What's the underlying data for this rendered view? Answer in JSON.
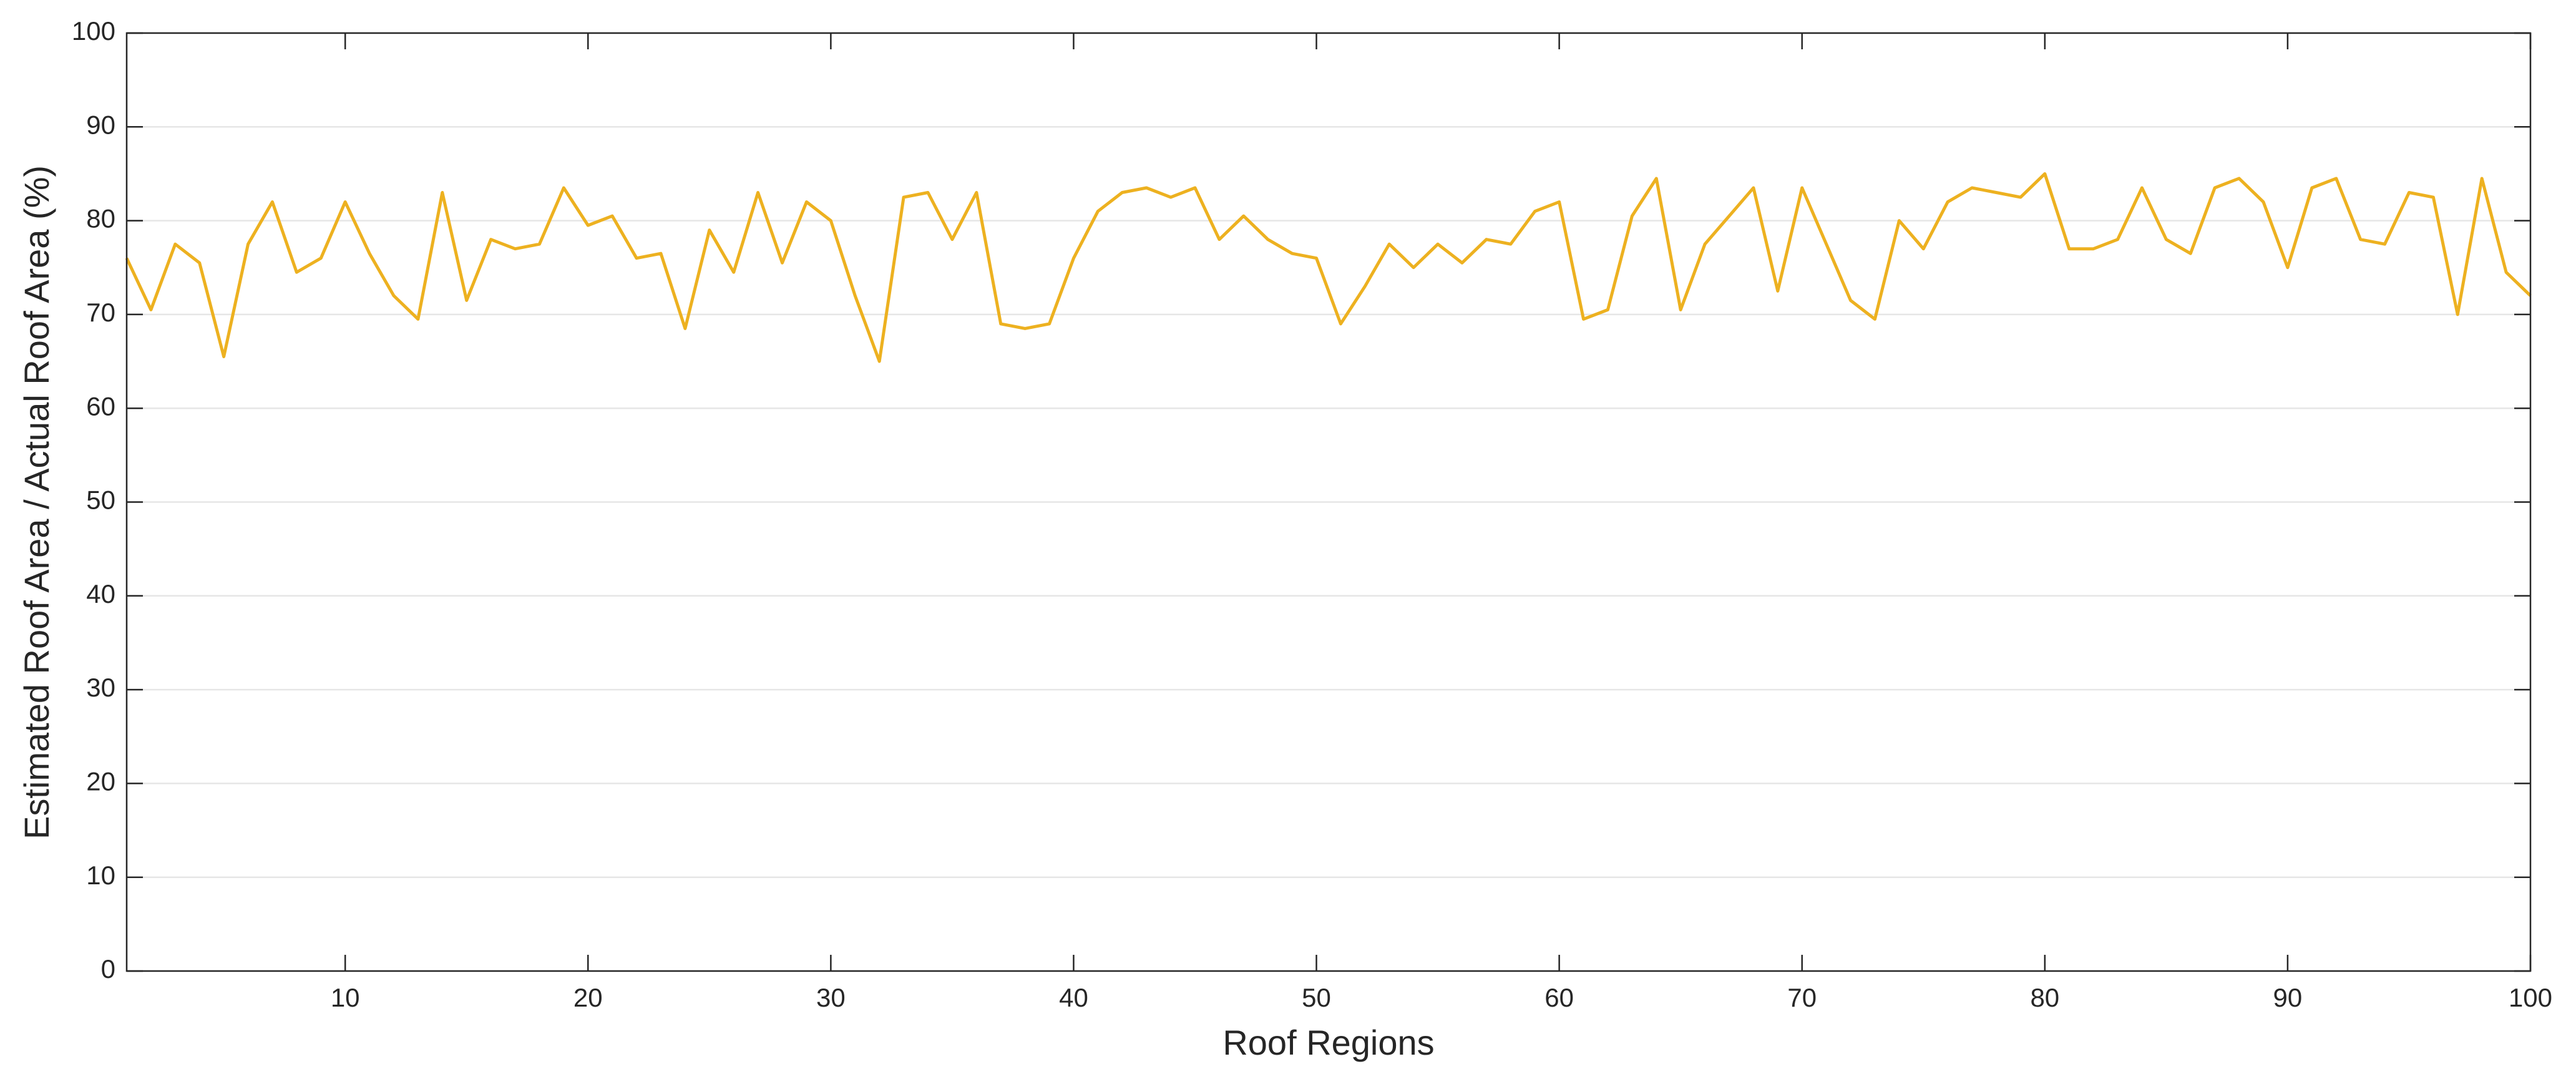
{
  "chart_data": {
    "type": "line",
    "xlabel": "Roof Regions",
    "ylabel": "Estimated Roof Area / Actual Roof Area (%)",
    "x": [
      1,
      2,
      3,
      4,
      5,
      6,
      7,
      8,
      9,
      10,
      11,
      12,
      13,
      14,
      15,
      16,
      17,
      18,
      19,
      20,
      21,
      22,
      23,
      24,
      25,
      26,
      27,
      28,
      29,
      30,
      31,
      32,
      33,
      34,
      35,
      36,
      37,
      38,
      39,
      40,
      41,
      42,
      43,
      44,
      45,
      46,
      47,
      48,
      49,
      50,
      51,
      52,
      53,
      54,
      55,
      56,
      57,
      58,
      59,
      60,
      61,
      62,
      63,
      64,
      65,
      66,
      67,
      68,
      69,
      70,
      71,
      72,
      73,
      74,
      75,
      76,
      77,
      78,
      79,
      80,
      81,
      82,
      83,
      84,
      85,
      86,
      87,
      88,
      89,
      90,
      91,
      92,
      93,
      94,
      95,
      96,
      97,
      98,
      99,
      100
    ],
    "series": [
      {
        "color": "#EDB120",
        "values": [
          76,
          70.5,
          77.5,
          75.5,
          65.5,
          77.5,
          82,
          74.5,
          76,
          82,
          76.5,
          72,
          69.5,
          83,
          71.5,
          78,
          77,
          77.5,
          83.5,
          79.5,
          80.5,
          76,
          76.5,
          68.5,
          79,
          74.5,
          83,
          75.5,
          82,
          80,
          72,
          65,
          82.5,
          83,
          78,
          83,
          69,
          68.5,
          69,
          76,
          81,
          83,
          83.5,
          82.5,
          83.5,
          78,
          80.5,
          78,
          76.5,
          76,
          69,
          73,
          77.5,
          75,
          77.5,
          75.5,
          78,
          77.5,
          81,
          82,
          69.5,
          70.5,
          80.5,
          84.5,
          70.5,
          77.5,
          80.5,
          83.5,
          72.5,
          83.5,
          77.5,
          71.5,
          69.5,
          80,
          77,
          82,
          83.5,
          83,
          82.5,
          85,
          77,
          77,
          78,
          83.5,
          78,
          76.5,
          83.5,
          84.5,
          82,
          75,
          83.5,
          84.5,
          78,
          77.5,
          83,
          82.5,
          70,
          84.5,
          74.5,
          72
        ]
      }
    ],
    "xlim": [
      1,
      100
    ],
    "xticks": [
      10,
      20,
      30,
      40,
      50,
      60,
      70,
      80,
      90,
      100
    ],
    "ylim": [
      0,
      100
    ],
    "yticks": [
      0,
      10,
      20,
      30,
      40,
      50,
      60,
      70,
      80,
      90,
      100
    ],
    "grid": true
  }
}
